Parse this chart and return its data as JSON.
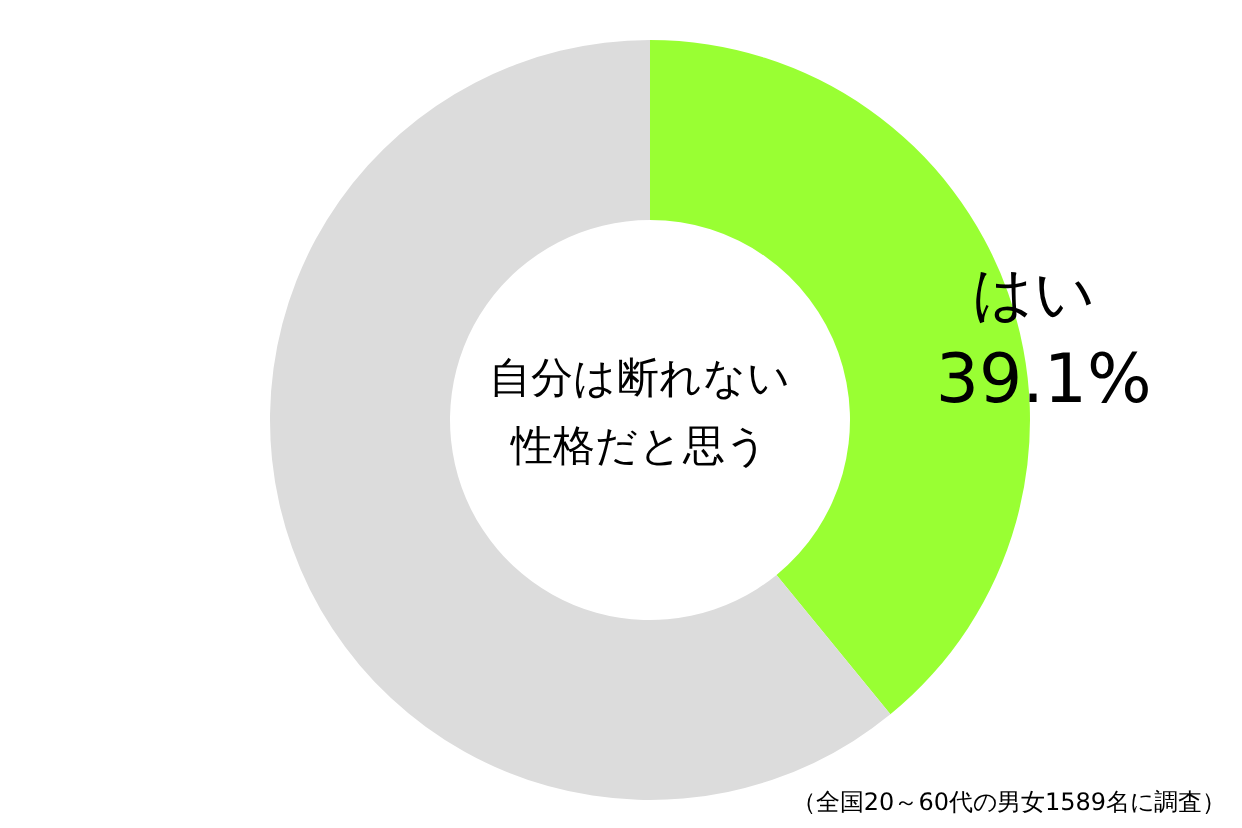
{
  "chart_data": {
    "type": "donut",
    "title": "自分は断れない性格だと思う",
    "categories": [
      "はい",
      null
    ],
    "values": [
      39.1,
      60.9
    ],
    "colors": [
      "#99ff33",
      "#dcdcdc"
    ],
    "value_labels": [
      "39.1%",
      null
    ],
    "annotations": [
      "（全国20～60代の男女1589名に調査）"
    ]
  }
}
